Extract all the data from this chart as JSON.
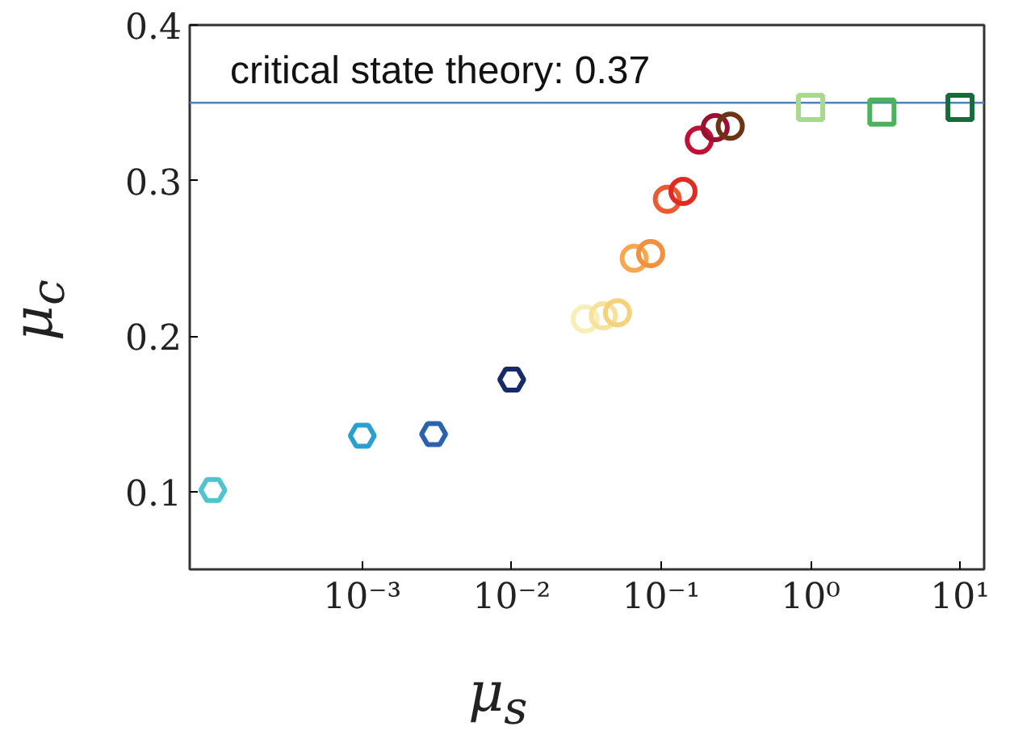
{
  "chart_data": {
    "type": "scatter",
    "xlabel": "μ$_{s}$",
    "ylabel": "μ$_{c}$",
    "log": "x",
    "xlim": [
      7e-05,
      14.5
    ],
    "ylim": [
      0.05,
      0.4
    ],
    "xticks": [
      {
        "value": 0.001,
        "label": "10⁻³"
      },
      {
        "value": 0.01,
        "label": "10⁻²"
      },
      {
        "value": 0.1,
        "label": "10⁻¹"
      },
      {
        "value": 1,
        "label": "10⁰"
      },
      {
        "value": 10,
        "label": "10¹"
      }
    ],
    "yticks": [
      0.1,
      0.2,
      0.3,
      0.4
    ],
    "grid": false,
    "ref_lines": [
      {
        "axis": "y",
        "value": 0.35,
        "color": "#4f81bd"
      }
    ],
    "annotations": [
      "critical state theory: 0.37"
    ],
    "series": [
      {
        "x": [
          0.0001,
          0.001,
          0.003,
          0.01
        ],
        "values": [
          0.101,
          0.136,
          0.137,
          0.172
        ],
        "colors": [
          "#4fc4cf",
          "#2a9fd0",
          "#2a62b0",
          "#172a6a"
        ]
      },
      {
        "marker": "circle",
        "x": [
          0.031,
          0.041,
          0.051,
          0.066,
          0.085,
          0.11,
          0.14,
          0.18,
          0.23,
          0.29
        ],
        "values": [
          0.211,
          0.213,
          0.215,
          0.25,
          0.253,
          0.288,
          0.293,
          0.326,
          0.334,
          0.335
        ],
        "colors": [
          "#f8efb8",
          "#f6e29a",
          "#f3d27a",
          "#f6a84e",
          "#f2903f",
          "#ec5a30",
          "#e02b22",
          "#bf1038",
          "#9a1030",
          "#6b3412"
        ]
      },
      {
        "marker": "square",
        "x": [
          1,
          3,
          10
        ],
        "values": [
          0.347,
          0.344,
          0.347
        ],
        "colors": [
          "#a8d98c",
          "#4cb35a",
          "#176b3a"
        ]
      }
    ]
  }
}
